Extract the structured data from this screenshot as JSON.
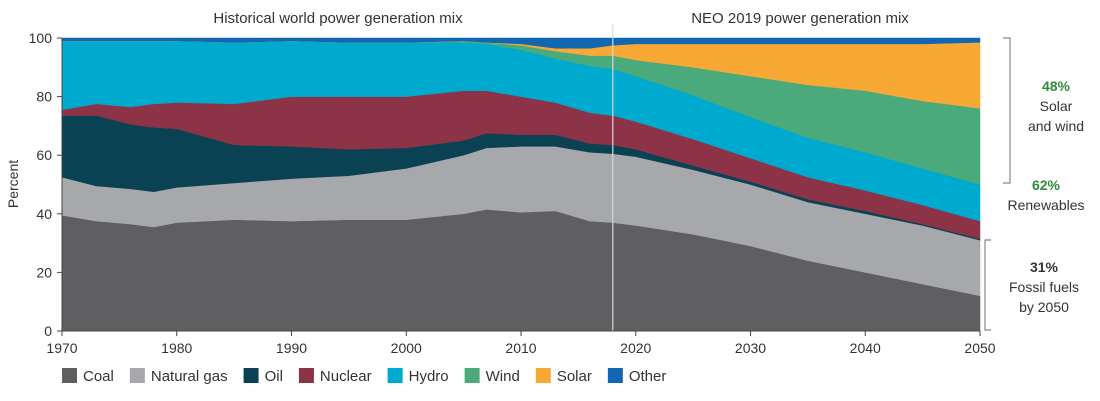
{
  "chart_data": {
    "type": "area",
    "stacked": true,
    "titles": {
      "historical": "Historical world power generation mix",
      "forecast": "NEO 2019 power generation mix"
    },
    "ylabel": "Percent",
    "xlabel": "",
    "xlim": [
      1970,
      2050
    ],
    "ylim": [
      0,
      100
    ],
    "x_ticks": [
      1970,
      1980,
      1990,
      2000,
      2010,
      2020,
      2030,
      2040,
      2050
    ],
    "y_ticks": [
      0,
      20,
      40,
      60,
      80,
      100
    ],
    "divider_year": 2018,
    "grid": false,
    "legend_position": "bottom",
    "x": [
      1970,
      1973,
      1976,
      1978,
      1980,
      1985,
      1990,
      1995,
      2000,
      2005,
      2007,
      2010,
      2013,
      2016,
      2018,
      2020,
      2025,
      2030,
      2035,
      2040,
      2045,
      2050
    ],
    "series": [
      {
        "name": "Coal",
        "color": "#5f5f61",
        "values": [
          39.5,
          37.5,
          36.5,
          35.5,
          37,
          38,
          37.5,
          38,
          38,
          40,
          41.5,
          40.5,
          41,
          37.5,
          37,
          36,
          33,
          29,
          24,
          20,
          16,
          12
        ]
      },
      {
        "name": "Natural gas",
        "color": "#a7a8ab",
        "values": [
          13,
          12,
          12,
          12,
          12,
          12.5,
          14.5,
          15,
          17.5,
          20,
          21,
          22.5,
          22,
          23.5,
          23.5,
          23.5,
          22,
          21,
          20,
          20,
          20,
          19
        ]
      },
      {
        "name": "Oil",
        "color": "#0a4254",
        "values": [
          21,
          24,
          22,
          22,
          20,
          13,
          11,
          9,
          7,
          5,
          5,
          4,
          4,
          3,
          3,
          2.5,
          1.5,
          1,
          1,
          1,
          0.5,
          0.5
        ]
      },
      {
        "name": "Nuclear",
        "color": "#8c3347",
        "values": [
          2,
          4,
          6,
          8,
          9,
          14,
          17,
          18,
          17.5,
          17,
          14.5,
          13,
          11,
          10.5,
          10,
          9.5,
          9,
          8,
          7.5,
          7,
          6.5,
          6
        ]
      },
      {
        "name": "Hydro",
        "color": "#00a9ce",
        "values": [
          23.5,
          21.5,
          22.5,
          21.5,
          21,
          21,
          19,
          18.5,
          18.5,
          16.5,
          16,
          16,
          15,
          16,
          16,
          15.5,
          15,
          14,
          13.5,
          13,
          12.5,
          12.5
        ]
      },
      {
        "name": "Wind",
        "color": "#4baa7b",
        "values": [
          0,
          0,
          0,
          0,
          0,
          0,
          0,
          0,
          0,
          0.5,
          0.5,
          1.5,
          2.5,
          3.5,
          4.5,
          5.5,
          9.5,
          14,
          18,
          21,
          23,
          26
        ]
      },
      {
        "name": "Solar",
        "color": "#f8a834",
        "values": [
          0,
          0,
          0,
          0,
          0,
          0,
          0,
          0,
          0,
          0,
          0,
          0.5,
          1,
          2.5,
          3.5,
          5.5,
          8,
          11,
          14,
          16,
          19.5,
          22.5
        ]
      },
      {
        "name": "Other",
        "color": "#1167b1",
        "values": [
          1,
          1,
          1,
          1,
          1,
          1.5,
          1,
          1.5,
          1.5,
          1,
          1.5,
          2,
          3.5,
          3.5,
          2.5,
          2,
          2,
          2,
          2,
          2,
          2,
          1.5
        ]
      }
    ],
    "annotations": {
      "solar_wind": {
        "value": "48%",
        "lines": [
          "Solar",
          "and wind"
        ]
      },
      "renewables": {
        "value": "62%",
        "lines": [
          "Renewables"
        ]
      },
      "fossil": {
        "value": "31%",
        "lines": [
          "Fossil fuels",
          "by 2050"
        ]
      }
    }
  }
}
